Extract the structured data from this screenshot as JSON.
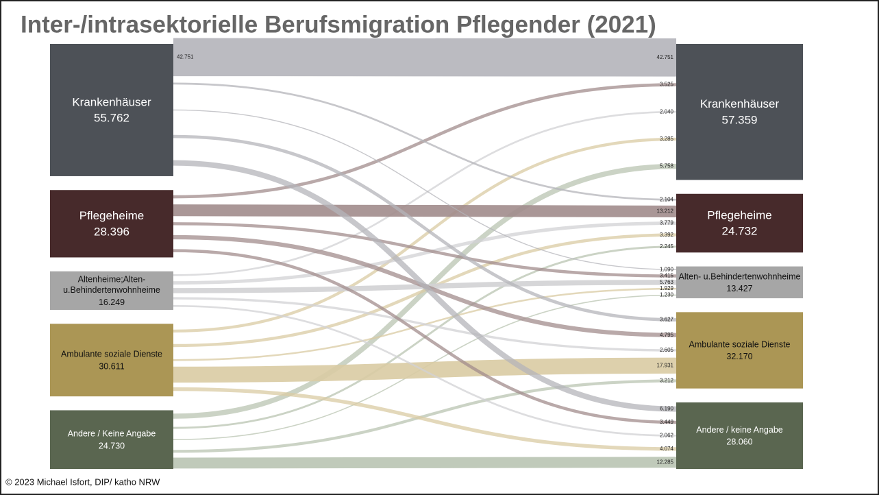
{
  "chart_data": {
    "type": "sankey",
    "title": "Inter-/intrasektorielle Berufsmigration Pflegender (2021)",
    "footer": "© 2023 Michael Isfort, DIP/ katho NRW",
    "nodes_left": [
      {
        "name_lines": [
          "Krankenhäuser"
        ],
        "value": 55762,
        "label": "55.762",
        "color": "#4d5157",
        "text_color": "#ffffff"
      },
      {
        "name_lines": [
          "Pflegeheime"
        ],
        "value": 28396,
        "label": "28.396",
        "color": "#472a2b",
        "text_color": "#ffffff"
      },
      {
        "name_lines": [
          "Altenheime;Alten-",
          "u.Behindertenwohnheime"
        ],
        "value": 16249,
        "label": "16.249",
        "color": "#a6a6a6",
        "text_color": "#111111"
      },
      {
        "name_lines": [
          "Ambulante soziale Dienste"
        ],
        "value": 30611,
        "label": "30.611",
        "color": "#ab9655",
        "text_color": "#111111"
      },
      {
        "name_lines": [
          "Andere / Keine Angabe"
        ],
        "value": 24730,
        "label": "24.730",
        "color": "#5a6650",
        "text_color": "#ffffff"
      }
    ],
    "nodes_right": [
      {
        "name_lines": [
          "Krankenhäuser"
        ],
        "value": 57359,
        "label": "57.359",
        "color": "#4d5157",
        "text_color": "#ffffff"
      },
      {
        "name_lines": [
          "Pflegeheime"
        ],
        "value": 24732,
        "label": "24.732",
        "color": "#472a2b",
        "text_color": "#ffffff"
      },
      {
        "name_lines": [
          "Alten- u.Behindertenwohnheime"
        ],
        "value": 13427,
        "label": "13.427",
        "color": "#a6a6a6",
        "text_color": "#111111"
      },
      {
        "name_lines": [
          "Ambulante soziale Dienste"
        ],
        "value": 32170,
        "label": "32.170",
        "color": "#ab9655",
        "text_color": "#111111"
      },
      {
        "name_lines": [
          "Andere / keine Angabe"
        ],
        "value": 28060,
        "label": "28.060",
        "color": "#5a6650",
        "text_color": "#ffffff"
      }
    ],
    "link_colors": [
      "#b4b4ba",
      "#a18c8c",
      "#d2d2d4",
      "#d9cba3",
      "#b9c4b2"
    ],
    "links": [
      {
        "source": 0,
        "target": 0,
        "value": 42751,
        "label": "42.751"
      },
      {
        "source": 1,
        "target": 0,
        "value": 3525,
        "label": "3.525"
      },
      {
        "source": 2,
        "target": 0,
        "value": 2040,
        "label": "2.040"
      },
      {
        "source": 3,
        "target": 0,
        "value": 3285,
        "label": "3.285"
      },
      {
        "source": 4,
        "target": 0,
        "value": 5758,
        "label": "5.758"
      },
      {
        "source": 0,
        "target": 1,
        "value": 2104,
        "label": "2.104"
      },
      {
        "source": 1,
        "target": 1,
        "value": 13212,
        "label": "13.212"
      },
      {
        "source": 2,
        "target": 1,
        "value": 3779,
        "label": "3.779"
      },
      {
        "source": 3,
        "target": 1,
        "value": 3392,
        "label": "3.392"
      },
      {
        "source": 4,
        "target": 1,
        "value": 2245,
        "label": "2.245"
      },
      {
        "source": 0,
        "target": 2,
        "value": 1090,
        "label": "1.090"
      },
      {
        "source": 1,
        "target": 2,
        "value": 3415,
        "label": "3.415"
      },
      {
        "source": 2,
        "target": 2,
        "value": 5763,
        "label": "5.763"
      },
      {
        "source": 3,
        "target": 2,
        "value": 1929,
        "label": "1.929"
      },
      {
        "source": 4,
        "target": 2,
        "value": 1230,
        "label": "1.230"
      },
      {
        "source": 0,
        "target": 3,
        "value": 3627,
        "label": "3.627"
      },
      {
        "source": 1,
        "target": 3,
        "value": 4795,
        "label": "4.795"
      },
      {
        "source": 2,
        "target": 3,
        "value": 2605,
        "label": "2.605"
      },
      {
        "source": 3,
        "target": 3,
        "value": 17931,
        "label": "17.931"
      },
      {
        "source": 4,
        "target": 3,
        "value": 3212,
        "label": "3.212"
      },
      {
        "source": 0,
        "target": 4,
        "value": 6190,
        "label": "6.190"
      },
      {
        "source": 1,
        "target": 4,
        "value": 3449,
        "label": "3.449"
      },
      {
        "source": 2,
        "target": 4,
        "value": 2062,
        "label": "2.062"
      },
      {
        "source": 3,
        "target": 4,
        "value": 4074,
        "label": "4.074"
      },
      {
        "source": 4,
        "target": 4,
        "value": 12285,
        "label": "12.285"
      }
    ]
  }
}
